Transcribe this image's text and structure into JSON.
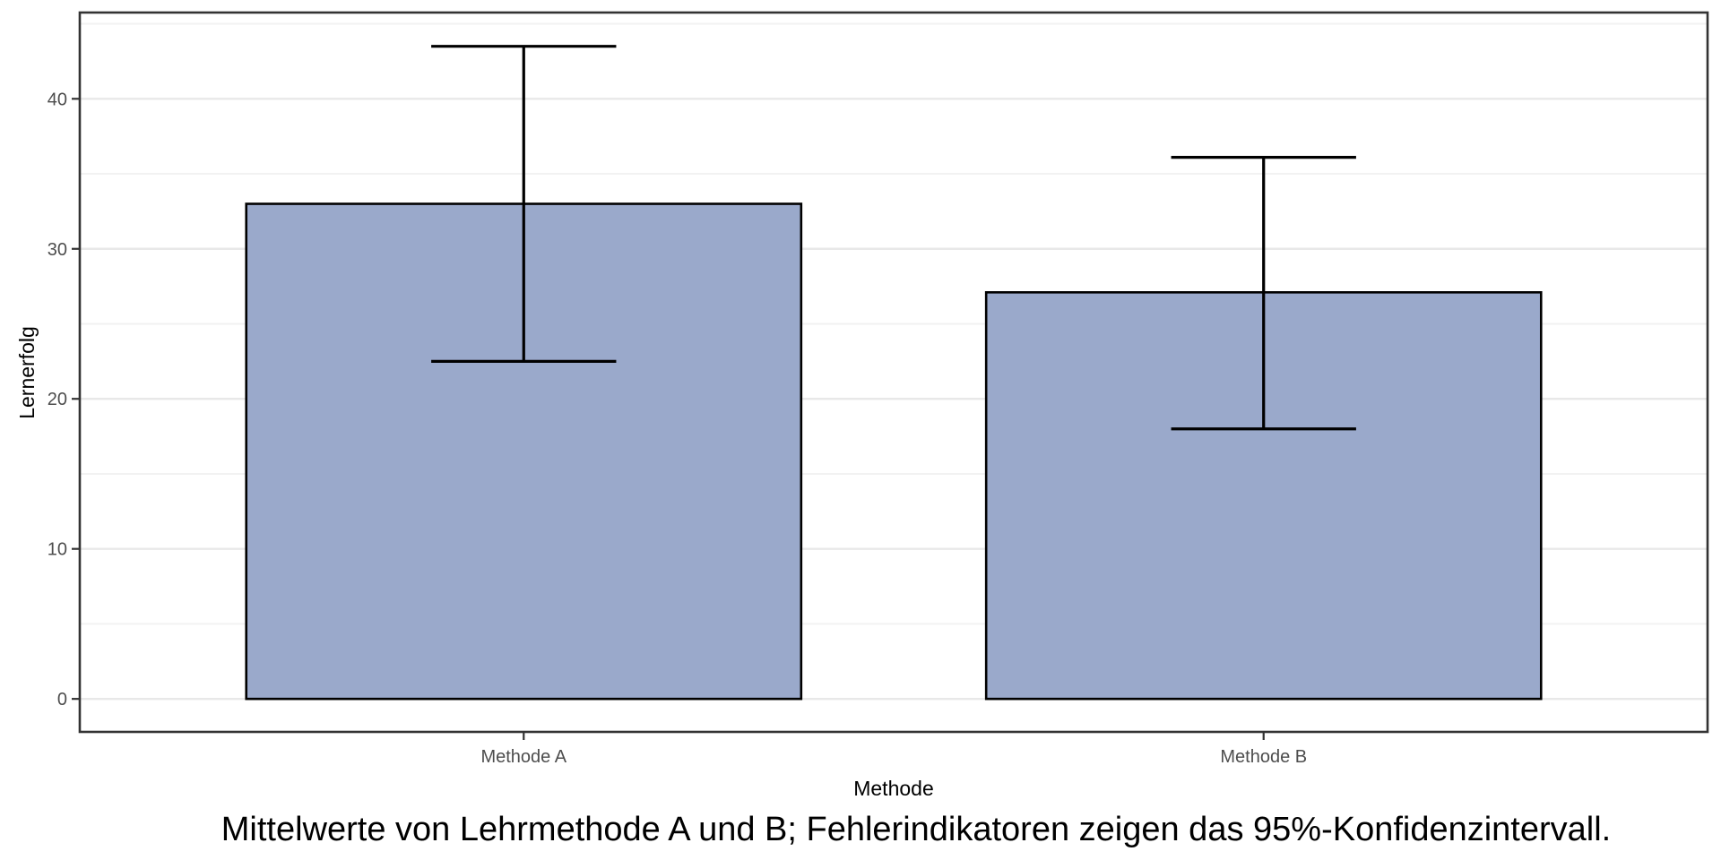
{
  "chart_data": {
    "type": "bar",
    "title": "",
    "xlabel": "Methode",
    "ylabel": "Lernerfolg",
    "caption": "Mittelwerte von Lehrmethode A und B; Fehlerindikatoren zeigen das 95%-Konfidenzintervall.",
    "categories": [
      "Methode A",
      "Methode B"
    ],
    "x_positions": [
      1,
      2
    ],
    "values": [
      33,
      27.1
    ],
    "error_bars": {
      "label": "95%-Konfidenzintervall",
      "lower": [
        22.5,
        18.0
      ],
      "upper": [
        43.5,
        36.1
      ]
    },
    "bar_width": 0.75,
    "cap_width": 0.25,
    "xlim": [
      0.4,
      2.6
    ],
    "ylim": [
      -2.2,
      45.75
    ],
    "y_major_ticks": [
      0,
      10,
      20,
      30,
      40
    ],
    "y_minor_ticks": [
      5,
      15,
      25,
      35,
      45
    ],
    "grid": "horizontal major+minor",
    "legend": "none",
    "colors": {
      "bar_fill": "#9AA9CB",
      "bar_border": "#000000",
      "error_bar": "#000000",
      "panel_border": "#333333",
      "grid_major": "#E8E8E8",
      "grid_minor": "#F2F2F2",
      "axis_tick": "#333333",
      "tick_label": "#4D4D4D",
      "axis_title": "#000000",
      "caption": "#000000",
      "background": "#FFFFFF"
    }
  }
}
